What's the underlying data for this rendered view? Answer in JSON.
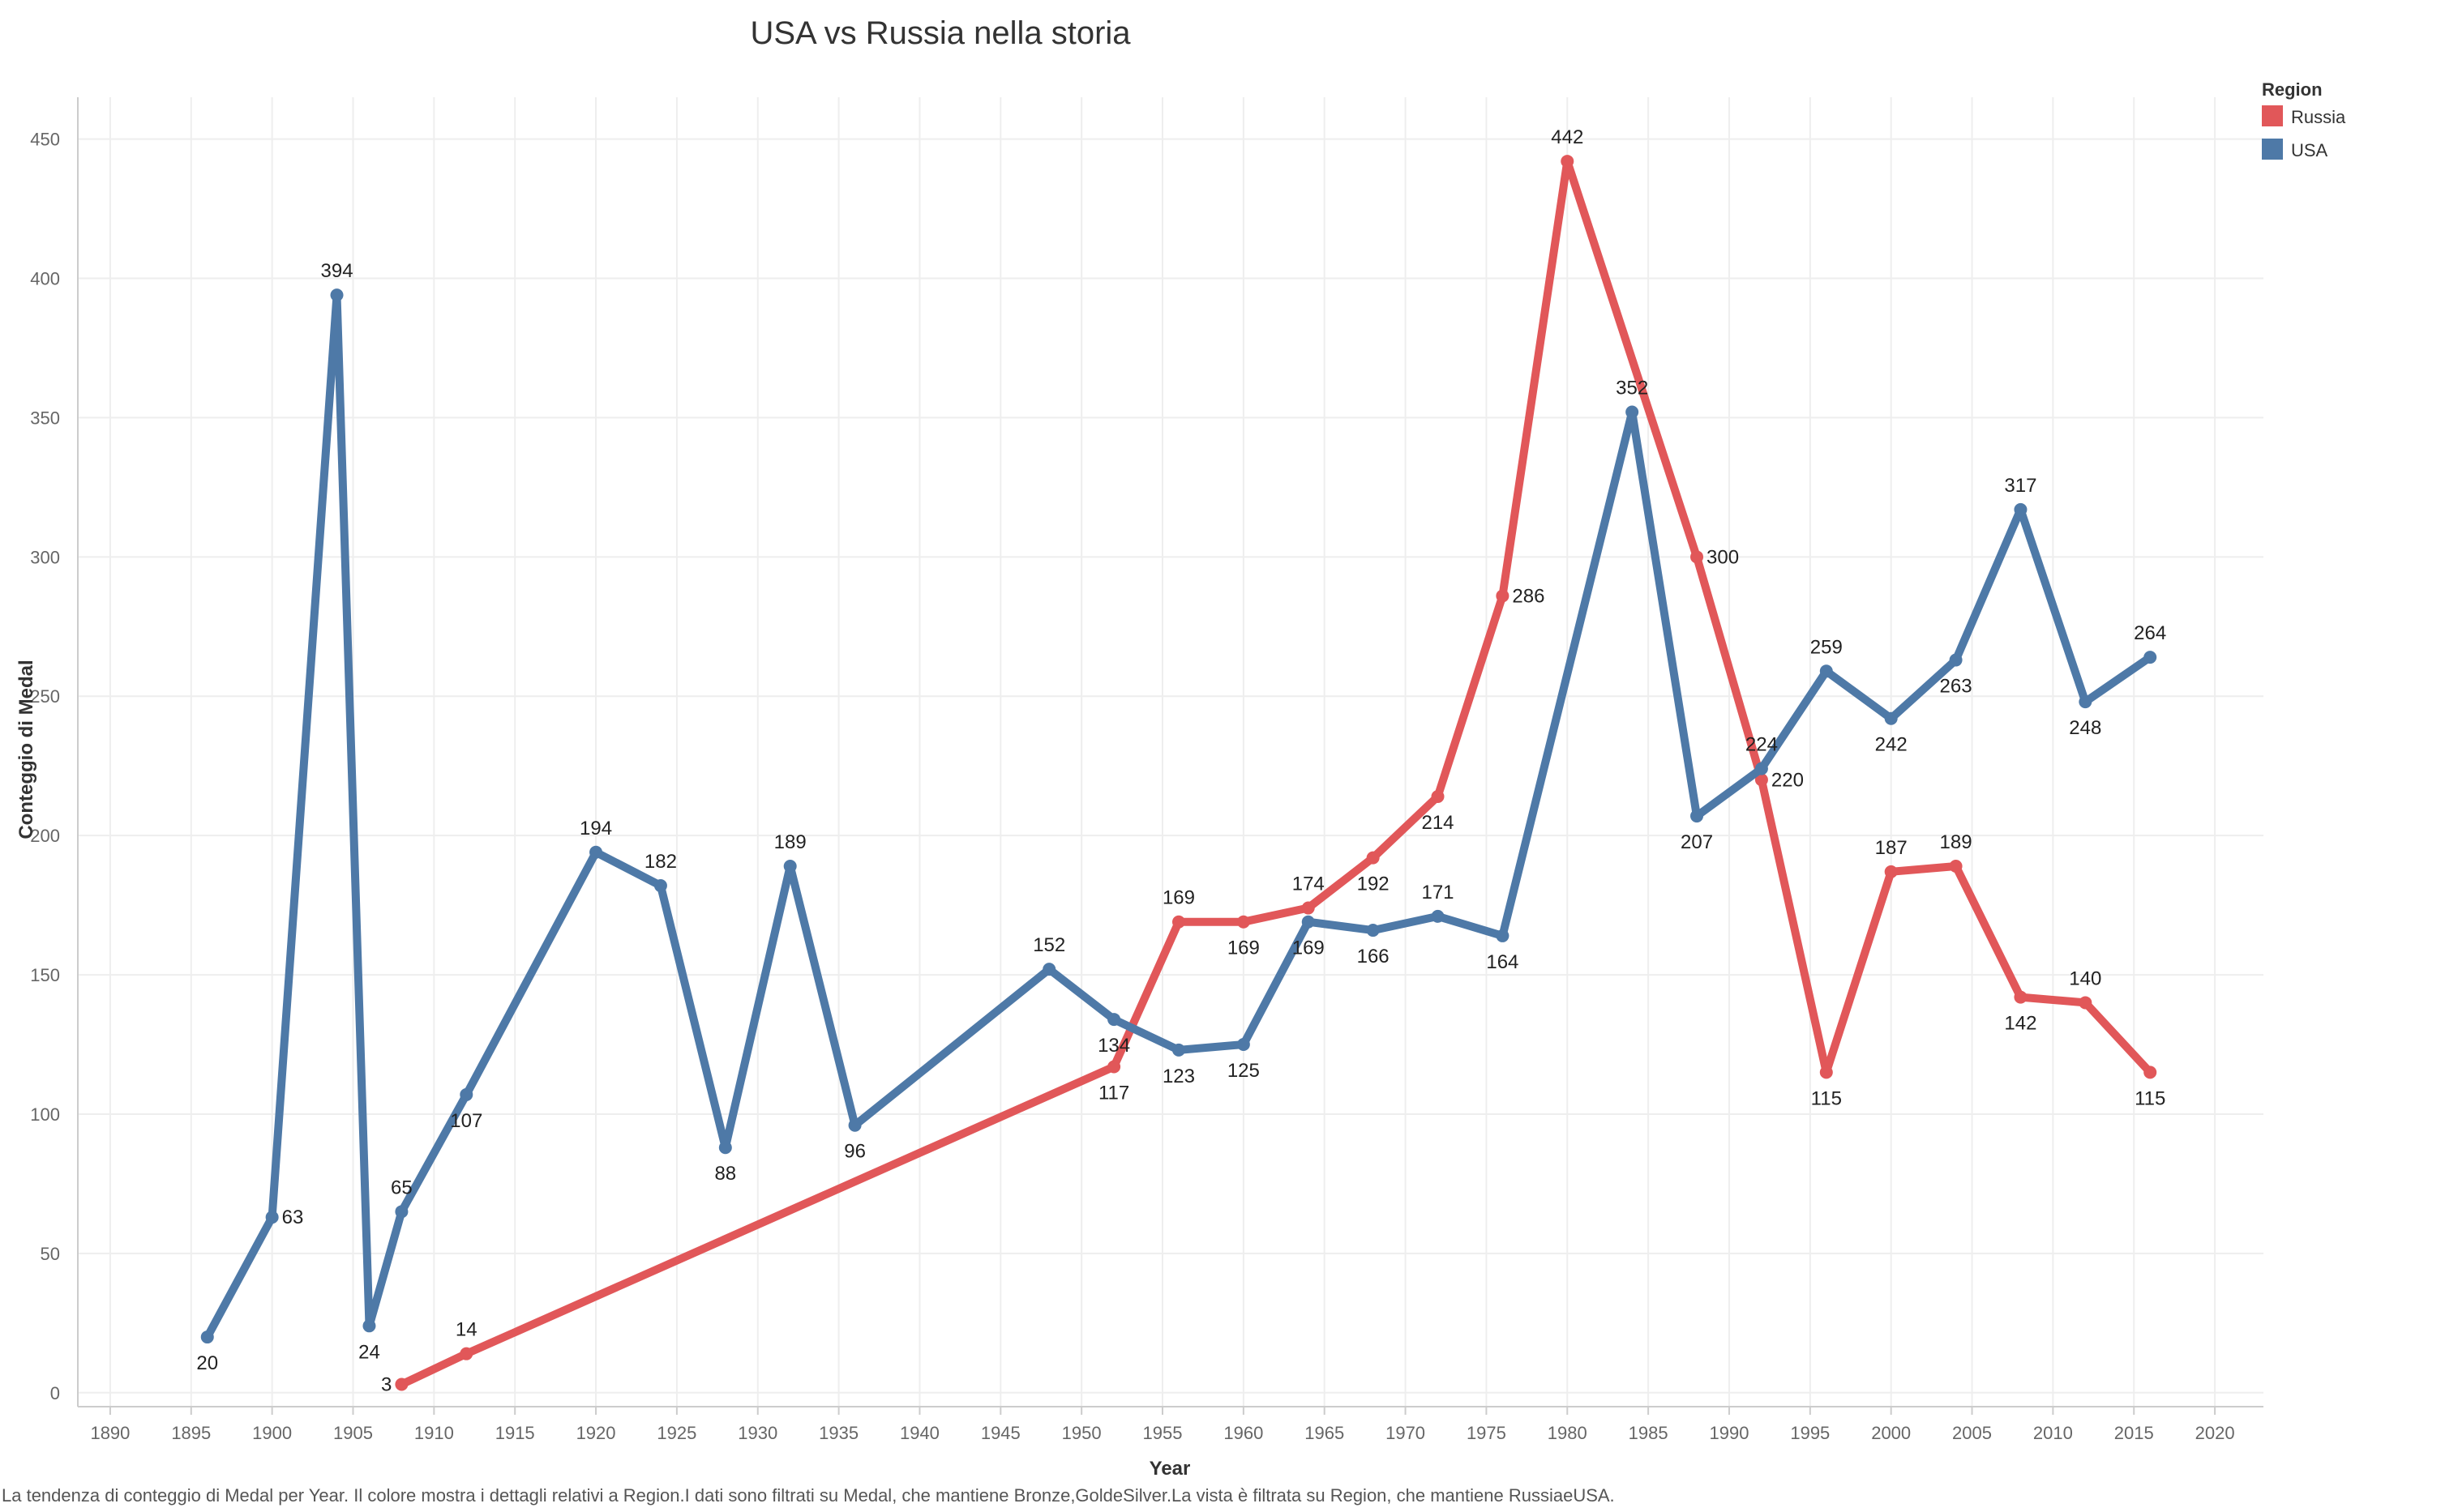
{
  "colors": {
    "russia": "#e15759",
    "usa": "#4e79a7",
    "grid": "#eeeeee",
    "axis": "#cccccc"
  },
  "legend": {
    "title": "Region",
    "items": [
      {
        "label": "Russia",
        "color": "#e15759"
      },
      {
        "label": "USA",
        "color": "#4e79a7"
      }
    ]
  },
  "caption": "La tendenza di conteggio di Medal per Year. Il colore mostra i dettagli relativi a Region.I dati sono filtrati su Medal, che mantiene Bronze,GoldeSilver.La vista è filtrata su Region, che mantiene RussiaeUSA.",
  "chart_data": {
    "type": "line",
    "title": "USA vs Russia nella storia",
    "xlabel": "Year",
    "ylabel": "Conteggio di Medal",
    "xlim": [
      1888,
      2023
    ],
    "ylim": [
      -5,
      465
    ],
    "xticks": [
      1890,
      1895,
      1900,
      1905,
      1910,
      1915,
      1920,
      1925,
      1930,
      1935,
      1940,
      1945,
      1950,
      1955,
      1960,
      1965,
      1970,
      1975,
      1980,
      1985,
      1990,
      1995,
      2000,
      2005,
      2010,
      2015,
      2020
    ],
    "yticks": [
      0,
      50,
      100,
      150,
      200,
      250,
      300,
      350,
      400,
      450
    ],
    "grid": true,
    "legend_position": "top-right",
    "series": [
      {
        "name": "Russia",
        "color": "#e15759",
        "x": [
          1908,
          1912,
          1952,
          1956,
          1960,
          1964,
          1968,
          1972,
          1976,
          1980,
          1988,
          1992,
          1996,
          2000,
          2004,
          2008,
          2012,
          2016
        ],
        "values": [
          3,
          14,
          117,
          169,
          169,
          174,
          192,
          214,
          286,
          442,
          300,
          220,
          115,
          187,
          189,
          142,
          140,
          115
        ],
        "label_pos": [
          "left",
          "above",
          "below",
          "above",
          "below",
          "above",
          "below",
          "below",
          "right",
          "above",
          "right",
          "right",
          "below",
          "above",
          "above",
          "below",
          "above",
          "below"
        ]
      },
      {
        "name": "USA",
        "color": "#4e79a7",
        "x": [
          1896,
          1900,
          1904,
          1906,
          1908,
          1912,
          1920,
          1924,
          1928,
          1932,
          1936,
          1948,
          1952,
          1956,
          1960,
          1964,
          1968,
          1972,
          1976,
          1984,
          1988,
          1992,
          1996,
          2000,
          2004,
          2008,
          2012,
          2016
        ],
        "values": [
          20,
          63,
          394,
          24,
          65,
          107,
          194,
          182,
          88,
          189,
          96,
          152,
          134,
          123,
          125,
          169,
          166,
          171,
          164,
          352,
          207,
          224,
          259,
          242,
          263,
          317,
          248,
          264
        ],
        "label_pos": [
          "below",
          "right",
          "above",
          "below",
          "above",
          "below",
          "above",
          "above",
          "below",
          "above",
          "below",
          "above",
          "below",
          "below",
          "below",
          "below",
          "below",
          "above",
          "below",
          "above",
          "below",
          "above",
          "above",
          "below",
          "below",
          "above",
          "below",
          "above"
        ]
      }
    ]
  }
}
